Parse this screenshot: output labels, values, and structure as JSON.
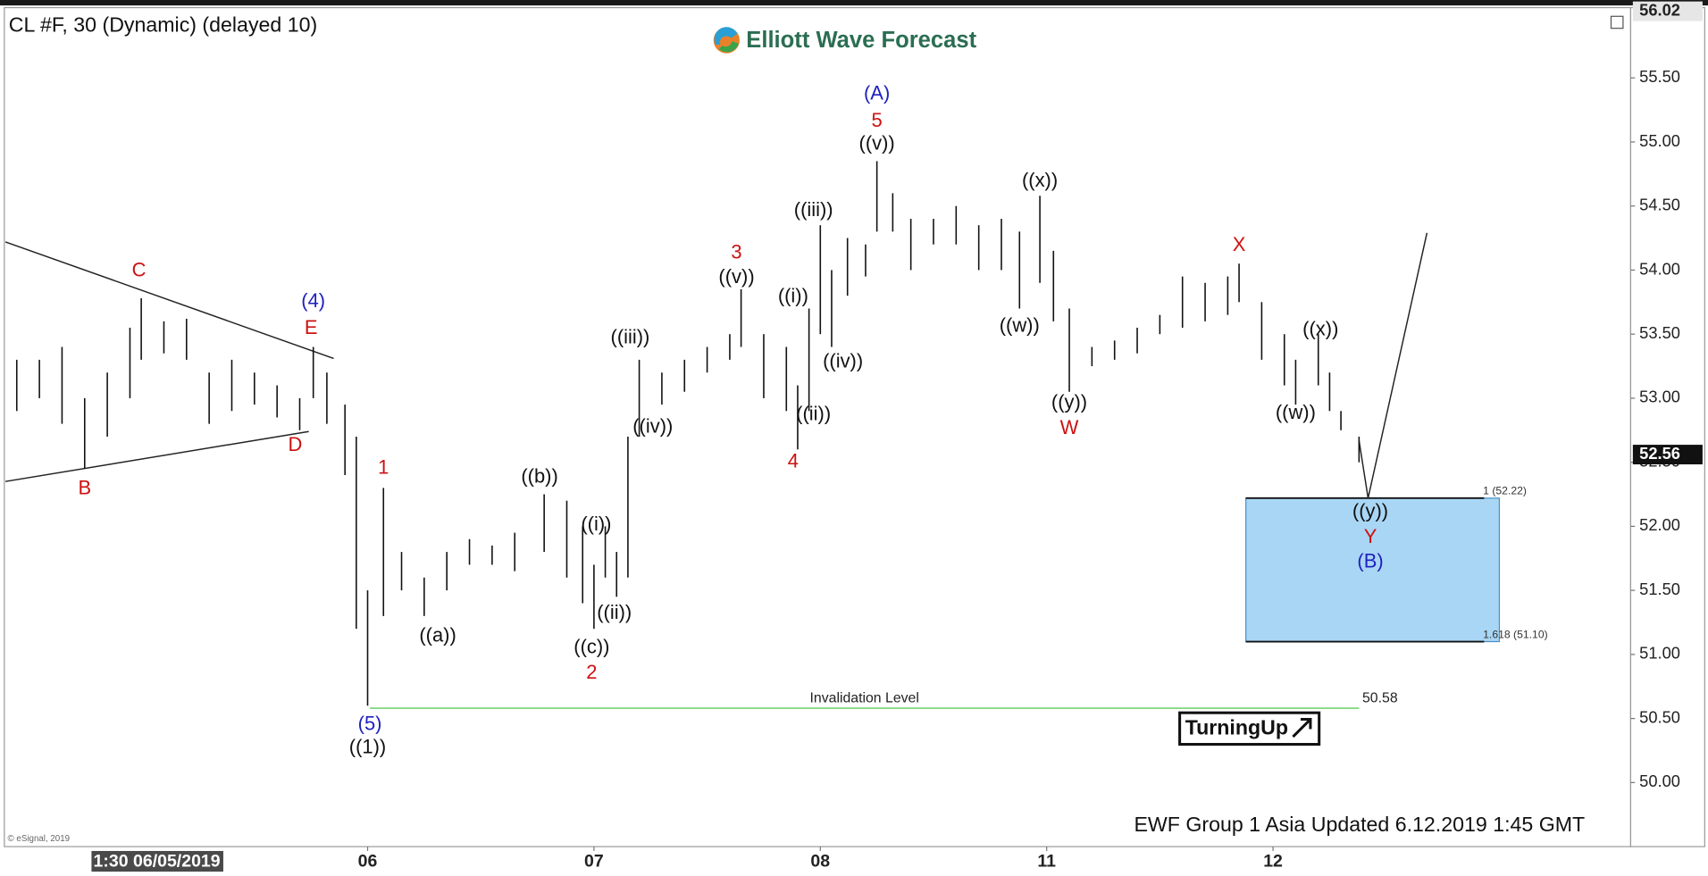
{
  "chart_data": {
    "type": "range_bar",
    "title": "CL #F, 30 (Dynamic) (delayed 10)",
    "logo": "Elliott Wave Forecast",
    "footer": "EWF Group 1 Asia Updated 6.12.2019 1:45 GMT",
    "copyright": "© eSignal, 2019",
    "badge": "TurningUp",
    "cursor_label": "1:30 06/05/2019",
    "color": "#111111",
    "xlim": [
      -0.6,
      6.58
    ],
    "ylim": [
      49.5,
      56.04
    ],
    "xticks": [
      {
        "value": 1,
        "label": "06"
      },
      {
        "value": 2,
        "label": "07"
      },
      {
        "value": 3,
        "label": "08"
      },
      {
        "value": 4,
        "label": "11"
      },
      {
        "value": 5,
        "label": "12"
      }
    ],
    "yticks": [
      {
        "value": 50,
        "label": "50.00"
      },
      {
        "value": 50.5,
        "label": "50.50"
      },
      {
        "value": 51,
        "label": "51.00"
      },
      {
        "value": 51.5,
        "label": "51.50"
      },
      {
        "value": 52,
        "label": "52.00"
      },
      {
        "value": 52.5,
        "label": "52.50"
      },
      {
        "value": 53,
        "label": "53.00"
      },
      {
        "value": 53.5,
        "label": "53.50"
      },
      {
        "value": 54,
        "label": "54.00"
      },
      {
        "value": 54.5,
        "label": "54.50"
      },
      {
        "value": 55,
        "label": "55.00"
      },
      {
        "value": 55.5,
        "label": "55.50"
      }
    ],
    "high_marker": 56.02,
    "last_price": 52.56,
    "x": [
      -0.55,
      -0.45,
      -0.35,
      -0.25,
      -0.15,
      -0.05,
      0.0,
      0.1,
      0.2,
      0.3,
      0.4,
      0.5,
      0.6,
      0.7,
      0.76,
      0.82,
      0.9,
      0.95,
      1.0,
      1.07,
      1.15,
      1.25,
      1.35,
      1.45,
      1.55,
      1.65,
      1.78,
      1.88,
      1.95,
      2.0,
      2.05,
      2.1,
      2.15,
      2.2,
      2.3,
      2.4,
      2.5,
      2.6,
      2.65,
      2.75,
      2.85,
      2.9,
      2.95,
      3.0,
      3.05,
      3.12,
      3.2,
      3.25,
      3.32,
      3.4,
      3.5,
      3.6,
      3.7,
      3.8,
      3.88,
      3.97,
      4.03,
      4.1,
      4.2,
      4.3,
      4.4,
      4.5,
      4.6,
      4.7,
      4.8,
      4.85,
      4.95,
      5.05,
      5.1,
      5.2,
      5.25,
      5.3,
      5.38
    ],
    "high": [
      53.3,
      53.3,
      53.4,
      53.0,
      53.2,
      53.55,
      53.78,
      53.6,
      53.62,
      53.2,
      53.3,
      53.2,
      53.1,
      53.0,
      53.4,
      53.2,
      52.95,
      52.7,
      51.5,
      52.3,
      51.8,
      51.6,
      51.8,
      51.9,
      51.85,
      51.95,
      52.25,
      52.2,
      52.0,
      51.7,
      52.0,
      51.8,
      52.7,
      53.3,
      53.2,
      53.3,
      53.4,
      53.5,
      53.85,
      53.5,
      53.4,
      53.1,
      53.7,
      54.35,
      54.0,
      54.25,
      54.2,
      54.85,
      54.6,
      54.4,
      54.4,
      54.5,
      54.35,
      54.4,
      54.3,
      54.58,
      54.15,
      53.7,
      53.4,
      53.45,
      53.55,
      53.65,
      53.95,
      53.9,
      53.95,
      54.05,
      53.75,
      53.5,
      53.3,
      53.5,
      53.2,
      52.9,
      52.7
    ],
    "low": [
      52.9,
      53.0,
      52.8,
      52.45,
      52.7,
      53.0,
      53.3,
      53.35,
      53.3,
      52.8,
      52.9,
      52.95,
      52.85,
      52.75,
      53.0,
      52.8,
      52.4,
      51.2,
      50.6,
      51.3,
      51.5,
      51.3,
      51.5,
      51.7,
      51.7,
      51.65,
      51.8,
      51.6,
      51.4,
      51.2,
      51.6,
      51.45,
      51.6,
      52.7,
      52.95,
      53.05,
      53.2,
      53.3,
      53.4,
      53.0,
      52.9,
      52.6,
      52.9,
      53.5,
      53.4,
      53.8,
      53.95,
      54.3,
      54.3,
      54.0,
      54.2,
      54.2,
      54.0,
      54.0,
      53.7,
      53.9,
      53.6,
      53.05,
      53.25,
      53.3,
      53.35,
      53.5,
      53.55,
      53.6,
      53.65,
      53.75,
      53.3,
      53.1,
      52.95,
      53.1,
      52.9,
      52.75,
      52.5
    ],
    "annotations": [
      {
        "text": "(A)",
        "x": 3.25,
        "y": 55.37,
        "color": "#1f1fbf"
      },
      {
        "text": "5",
        "x": 3.25,
        "y": 55.16,
        "color": "#cc1111"
      },
      {
        "text": "((v))",
        "x": 3.25,
        "y": 54.98,
        "color": "#111111"
      },
      {
        "text": "((x))",
        "x": 3.97,
        "y": 54.69,
        "color": "#111111"
      },
      {
        "text": "((iii))",
        "x": 2.97,
        "y": 54.46,
        "color": "#111111"
      },
      {
        "text": "3",
        "x": 2.63,
        "y": 54.13,
        "color": "#cc1111"
      },
      {
        "text": "((v))",
        "x": 2.63,
        "y": 53.94,
        "color": "#111111"
      },
      {
        "text": "X",
        "x": 4.85,
        "y": 54.19,
        "color": "#cc1111"
      },
      {
        "text": "C",
        "x": -0.01,
        "y": 53.99,
        "color": "#cc1111"
      },
      {
        "text": "(4)",
        "x": 0.76,
        "y": 53.75,
        "color": "#1f1fbf"
      },
      {
        "text": "E",
        "x": 0.75,
        "y": 53.54,
        "color": "#cc1111"
      },
      {
        "text": "((i))",
        "x": 2.88,
        "y": 53.79,
        "color": "#111111"
      },
      {
        "text": "((iii))",
        "x": 2.16,
        "y": 53.47,
        "color": "#111111"
      },
      {
        "text": "((x))",
        "x": 5.21,
        "y": 53.53,
        "color": "#111111"
      },
      {
        "text": "((w))",
        "x": 3.88,
        "y": 53.56,
        "color": "#111111"
      },
      {
        "text": "((iv))",
        "x": 3.1,
        "y": 53.28,
        "color": "#111111"
      },
      {
        "text": "((iv))",
        "x": 2.26,
        "y": 52.77,
        "color": "#111111"
      },
      {
        "text": "((ii))",
        "x": 2.97,
        "y": 52.87,
        "color": "#111111"
      },
      {
        "text": "((y))",
        "x": 4.1,
        "y": 52.96,
        "color": "#111111"
      },
      {
        "text": "W",
        "x": 4.1,
        "y": 52.76,
        "color": "#cc1111"
      },
      {
        "text": "((w))",
        "x": 5.1,
        "y": 52.88,
        "color": "#111111"
      },
      {
        "text": "D",
        "x": 0.68,
        "y": 52.63,
        "color": "#cc1111"
      },
      {
        "text": "4",
        "x": 2.88,
        "y": 52.5,
        "color": "#cc1111"
      },
      {
        "text": "1",
        "x": 1.07,
        "y": 52.45,
        "color": "#cc1111"
      },
      {
        "text": "B",
        "x": -0.25,
        "y": 52.29,
        "color": "#cc1111"
      },
      {
        "text": "((b))",
        "x": 1.76,
        "y": 52.38,
        "color": "#111111"
      },
      {
        "text": "((i))",
        "x": 2.01,
        "y": 52.01,
        "color": "#111111"
      },
      {
        "text": "((ii))",
        "x": 2.09,
        "y": 51.32,
        "color": "#111111"
      },
      {
        "text": "((a))",
        "x": 1.31,
        "y": 51.14,
        "color": "#111111"
      },
      {
        "text": "((c))",
        "x": 1.99,
        "y": 51.05,
        "color": "#111111"
      },
      {
        "text": "2",
        "x": 1.99,
        "y": 50.85,
        "color": "#cc1111"
      },
      {
        "text": "(5)",
        "x": 1.01,
        "y": 50.45,
        "color": "#1f1fbf"
      },
      {
        "text": "((1))",
        "x": 1.0,
        "y": 50.27,
        "color": "#111111"
      },
      {
        "text": "((y))",
        "x": 5.43,
        "y": 52.11,
        "color": "#111111"
      },
      {
        "text": "Y",
        "x": 5.43,
        "y": 51.91,
        "color": "#cc1111"
      },
      {
        "text": "(B)",
        "x": 5.43,
        "y": 51.72,
        "color": "#1f1fbf"
      }
    ],
    "trendlines": [
      {
        "x": [
          -0.6,
          0.85
        ],
        "y": [
          54.22,
          53.31
        ]
      },
      {
        "x": [
          -0.6,
          0.74
        ],
        "y": [
          52.35,
          52.74
        ]
      },
      {
        "x": [
          5.38,
          5.42,
          5.68
        ],
        "y": [
          52.67,
          52.22,
          54.29
        ]
      }
    ],
    "invalidation": {
      "value": 50.58,
      "label": "Invalidation Level",
      "x_start": 1.01,
      "x_end": 5.38,
      "color": "#7fd67f"
    },
    "fib_box": {
      "top": 52.22,
      "bottom": 51.1,
      "x_start": 4.88,
      "x_end": 6.0,
      "top_label": "1 (52.22)",
      "bottom_label": "1.618 (51.10)",
      "color": "#a9d6f5"
    }
  }
}
